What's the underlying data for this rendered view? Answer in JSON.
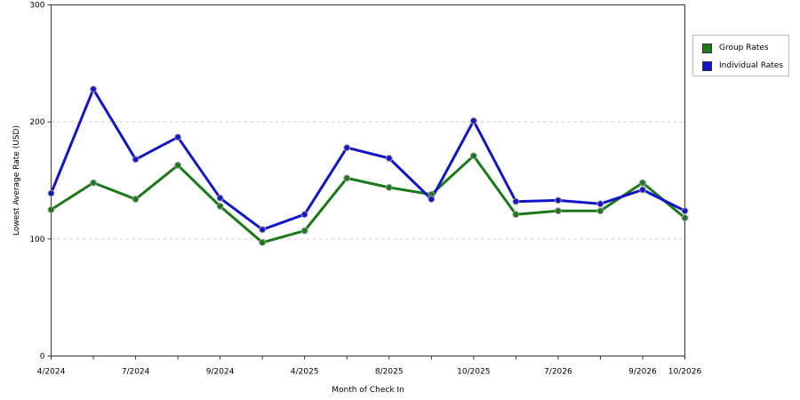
{
  "chart_data": {
    "type": "line",
    "title": "",
    "xlabel": "Month of Check In",
    "ylabel": "Lowest Average Rate (USD)",
    "ylim": [
      0,
      300
    ],
    "yticks": [
      0,
      100,
      200,
      300
    ],
    "grid": true,
    "legend_position": "top-right",
    "categories": [
      "4/2024",
      "",
      "7/2024",
      "",
      "9/2024",
      "",
      "4/2025",
      "",
      "8/2025",
      "",
      "10/2025",
      "",
      "7/2026",
      "",
      "9/2026",
      "10/2026"
    ],
    "series": [
      {
        "name": "Group Rates",
        "color": "#1a7a1a",
        "values": [
          125,
          148,
          134,
          163,
          128,
          97,
          107,
          152,
          144,
          138,
          171,
          121,
          124,
          124,
          148,
          118
        ]
      },
      {
        "name": "Individual Rates",
        "color": "#1515c8",
        "values": [
          139,
          228,
          168,
          187,
          135,
          108,
          121,
          178,
          169,
          134,
          201,
          132,
          133,
          130,
          142,
          124
        ]
      }
    ]
  }
}
